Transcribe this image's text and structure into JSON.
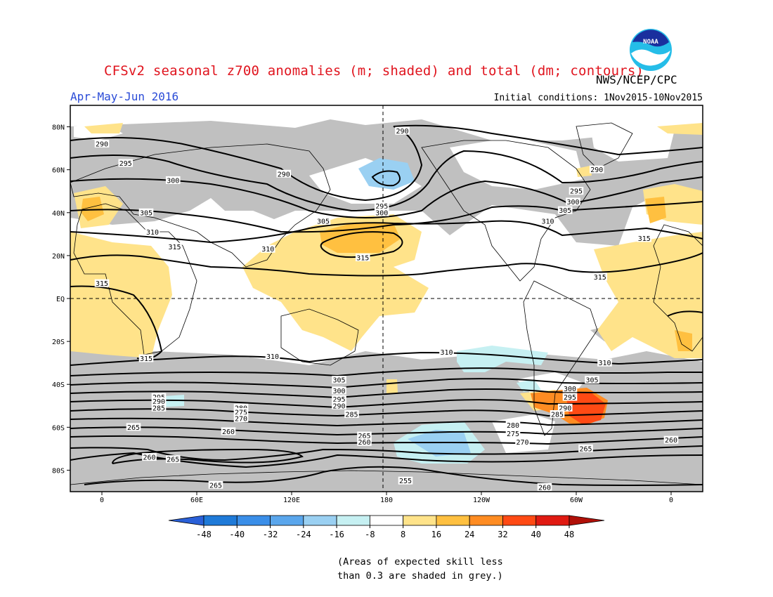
{
  "title": "CFSv2 seasonal z700 anomalies (m; shaded) and total (dm; contours)",
  "period": "Apr-May-Jun 2016",
  "agency": "NWS/NCEP/CPC",
  "logo_text": "NOAA",
  "initial_conditions": "Initial conditions: 1Nov2015-10Nov2015",
  "map": {
    "lat_labels": [
      "80N",
      "60N",
      "40N",
      "20N",
      "EQ",
      "20S",
      "40S",
      "60S",
      "80S"
    ],
    "lon_labels": [
      "0",
      "60E",
      "120E",
      "180",
      "120W",
      "60W",
      "0"
    ],
    "contour_labels": [
      {
        "text": "290",
        "lon": 0,
        "lat": 72
      },
      {
        "text": "295",
        "lon": 15,
        "lat": 63
      },
      {
        "text": "300",
        "lon": 45,
        "lat": 55
      },
      {
        "text": "290",
        "lon": 115,
        "lat": 58
      },
      {
        "text": "290",
        "lon": 190,
        "lat": 78
      },
      {
        "text": "295",
        "lon": 177,
        "lat": 43
      },
      {
        "text": "300",
        "lon": 177,
        "lat": 40
      },
      {
        "text": "305",
        "lon": 28,
        "lat": 40
      },
      {
        "text": "310",
        "lon": 32,
        "lat": 31
      },
      {
        "text": "315",
        "lon": 46,
        "lat": 24
      },
      {
        "text": "310",
        "lon": 105,
        "lat": 23
      },
      {
        "text": "305",
        "lon": 140,
        "lat": 36
      },
      {
        "text": "315",
        "lon": 165,
        "lat": 19
      },
      {
        "text": "290",
        "lon": 313,
        "lat": 60
      },
      {
        "text": "295",
        "lon": 300,
        "lat": 50
      },
      {
        "text": "300",
        "lon": 298,
        "lat": 45
      },
      {
        "text": "305",
        "lon": 293,
        "lat": 41
      },
      {
        "text": "310",
        "lon": 282,
        "lat": 36
      },
      {
        "text": "315",
        "lon": 343,
        "lat": 28
      },
      {
        "text": "315",
        "lon": 315,
        "lat": 10
      },
      {
        "text": "315",
        "lon": 0,
        "lat": 7
      },
      {
        "text": "315",
        "lon": 28,
        "lat": -28
      },
      {
        "text": "310",
        "lon": 108,
        "lat": -27
      },
      {
        "text": "310",
        "lon": 218,
        "lat": -25
      },
      {
        "text": "310",
        "lon": 318,
        "lat": -30
      },
      {
        "text": "305",
        "lon": 150,
        "lat": -38
      },
      {
        "text": "300",
        "lon": 150,
        "lat": -43
      },
      {
        "text": "295",
        "lon": 150,
        "lat": -47
      },
      {
        "text": "290",
        "lon": 150,
        "lat": -50
      },
      {
        "text": "285",
        "lon": 158,
        "lat": -54
      },
      {
        "text": "295",
        "lon": 36,
        "lat": -46
      },
      {
        "text": "290",
        "lon": 36,
        "lat": -48
      },
      {
        "text": "285",
        "lon": 36,
        "lat": -51
      },
      {
        "text": "280",
        "lon": 88,
        "lat": -51
      },
      {
        "text": "275",
        "lon": 88,
        "lat": -53
      },
      {
        "text": "270",
        "lon": 88,
        "lat": -56
      },
      {
        "text": "265",
        "lon": 20,
        "lat": -60
      },
      {
        "text": "260",
        "lon": 80,
        "lat": -62
      },
      {
        "text": "265",
        "lon": 166,
        "lat": -64
      },
      {
        "text": "260",
        "lon": 166,
        "lat": -67
      },
      {
        "text": "280",
        "lon": 260,
        "lat": -59
      },
      {
        "text": "275",
        "lon": 260,
        "lat": -63
      },
      {
        "text": "270",
        "lon": 266,
        "lat": -67
      },
      {
        "text": "265",
        "lon": 306,
        "lat": -70
      },
      {
        "text": "260",
        "lon": 360,
        "lat": -66
      },
      {
        "text": "260",
        "lon": 30,
        "lat": -74
      },
      {
        "text": "265",
        "lon": 45,
        "lat": -75
      },
      {
        "text": "265",
        "lon": 72,
        "lat": -87
      },
      {
        "text": "255",
        "lon": 192,
        "lat": -85
      },
      {
        "text": "260",
        "lon": 280,
        "lat": -88
      },
      {
        "text": "300",
        "lon": 296,
        "lat": -42
      },
      {
        "text": "305",
        "lon": 310,
        "lat": -38
      },
      {
        "text": "295",
        "lon": 296,
        "lat": -46
      },
      {
        "text": "290",
        "lon": 293,
        "lat": -51
      },
      {
        "text": "285",
        "lon": 288,
        "lat": -54
      }
    ]
  },
  "colorbar": {
    "labels": [
      "-48",
      "-40",
      "-32",
      "-24",
      "-16",
      "-8",
      "8",
      "16",
      "24",
      "32",
      "40",
      "48"
    ],
    "colors": [
      "#2a60d8",
      "#1f7ad8",
      "#3a8ee8",
      "#5aa6ec",
      "#9ad0f2",
      "#c6f0f2",
      "#ffffff",
      "#ffe38a",
      "#ffc040",
      "#ff8c22",
      "#ff4a14",
      "#e01a12",
      "#b01008"
    ]
  },
  "note_line1": "(Areas of expected skill less",
  "note_line2": "than 0.3 are shaded in grey.)"
}
